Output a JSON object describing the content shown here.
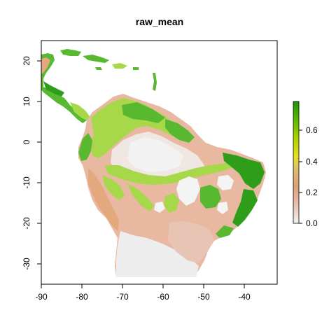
{
  "plot": {
    "title": "raw_mean",
    "x_tick_labels": [
      "-90",
      "-80",
      "-70",
      "-60",
      "-50",
      "-40"
    ],
    "y_tick_labels": [
      "20",
      "10",
      "0",
      "-10",
      "-20",
      "-30"
    ]
  },
  "legend": {
    "tick_labels": [
      "0.6",
      "0.4",
      "0.2",
      "0.0"
    ],
    "range": [
      0.0,
      0.78
    ],
    "colors": [
      "#f2f2f2",
      "#e6b9a8",
      "#dca07a",
      "#e0c070",
      "#e6e600",
      "#b8d400",
      "#70c000",
      "#3ea800",
      "#1f9a00"
    ]
  },
  "map": {
    "x_range": [
      -90,
      -32
    ],
    "y_range": [
      -35,
      25
    ],
    "colors": {
      "low": "#ededed",
      "tan": "#e8b8a0",
      "orange": "#e4a87e",
      "yellow": "#d8e040",
      "lightgreen": "#a6d84a",
      "green": "#58b830",
      "darkgreen": "#2e9e1a"
    }
  }
}
